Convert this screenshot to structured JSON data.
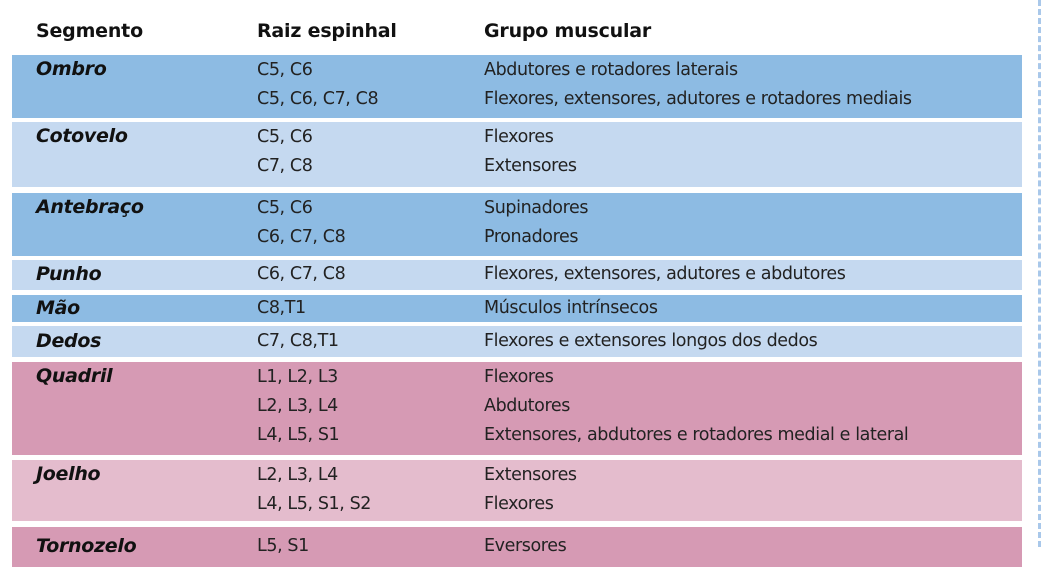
{
  "header": {
    "segment": "Segmento",
    "root": "Raiz espinhal",
    "group": "Grupo muscular"
  },
  "colors": {
    "upper_dark": "#8dbbe3",
    "upper_light": "#c5d9f0",
    "lower_dark": "#d69ab4",
    "lower_light": "#e4bccd"
  },
  "rows": [
    {
      "segment": "Ombro",
      "entries": [
        {
          "root": "C5, C6",
          "group": "Abdutores e rotadores laterais"
        },
        {
          "root": "C5, C6, C7, C8",
          "group": "Flexores, extensores, adutores e rotadores mediais"
        }
      ]
    },
    {
      "segment": "Cotovelo",
      "entries": [
        {
          "root": "C5, C6",
          "group": "Flexores"
        },
        {
          "root": "C7, C8",
          "group": "Extensores"
        }
      ]
    },
    {
      "segment": "Antebraço",
      "entries": [
        {
          "root": "C5, C6",
          "group": "Supinadores"
        },
        {
          "root": "C6, C7, C8",
          "group": "Pronadores"
        }
      ]
    },
    {
      "segment": "Punho",
      "entries": [
        {
          "root": "C6, C7, C8",
          "group": "Flexores, extensores, adutores e abdutores"
        }
      ]
    },
    {
      "segment": "Mão",
      "entries": [
        {
          "root": "C8,T1",
          "group": "Músculos intrínsecos"
        }
      ]
    },
    {
      "segment": "Dedos",
      "entries": [
        {
          "root": "C7, C8,T1",
          "group": "Flexores e extensores longos dos dedos"
        }
      ]
    },
    {
      "segment": "Quadril",
      "entries": [
        {
          "root": "L1, L2, L3",
          "group": "Flexores"
        },
        {
          "root": "L2, L3, L4",
          "group": "Abdutores"
        },
        {
          "root": "L4, L5, S1",
          "group": "Extensores, abdutores e rotadores medial e lateral"
        }
      ]
    },
    {
      "segment": "Joelho",
      "entries": [
        {
          "root": "L2, L3, L4",
          "group": "Extensores"
        },
        {
          "root": "L4, L5, S1, S2",
          "group": "Flexores"
        }
      ]
    },
    {
      "segment": "Tornozelo",
      "entries": [
        {
          "root": "L5, S1",
          "group": "Eversores"
        }
      ]
    }
  ]
}
